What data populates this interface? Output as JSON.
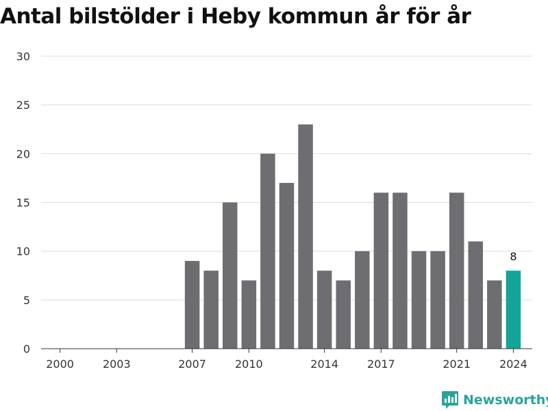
{
  "title": "Antal bilstölder i Heby kommun år för år",
  "brand": {
    "name": "Newsworthy",
    "icon": "chart-logo-icon",
    "color": "#2aa39a"
  },
  "colors": {
    "bar": "#6e6d72",
    "highlight": "#13a599",
    "grid": "#dddddd",
    "axis": "#333333"
  },
  "chart_data": {
    "type": "bar",
    "title": "Antal bilstölder i Heby kommun år för år",
    "xlabel": "",
    "ylabel": "",
    "xlim": [
      1999,
      2025
    ],
    "ylim": [
      0,
      30
    ],
    "y_ticks": [
      "0",
      "5",
      "10",
      "15",
      "20",
      "25",
      "30"
    ],
    "x_ticks": [
      "2000",
      "2003",
      "2007",
      "2010",
      "2014",
      "2017",
      "2021",
      "2024"
    ],
    "grid": true,
    "categories": [
      2007,
      2008,
      2009,
      2010,
      2011,
      2012,
      2013,
      2014,
      2015,
      2016,
      2017,
      2018,
      2019,
      2020,
      2021,
      2022,
      2023,
      2024
    ],
    "values": [
      9,
      8,
      15,
      7,
      20,
      17,
      23,
      8,
      7,
      10,
      16,
      16,
      10,
      10,
      16,
      11,
      7,
      8
    ],
    "highlight_category": 2024,
    "data_labels": [
      {
        "category": 2024,
        "text": "8"
      }
    ]
  }
}
